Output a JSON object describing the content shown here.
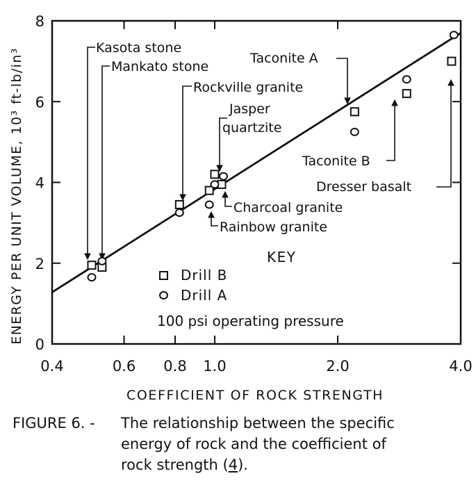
{
  "chart_data": {
    "type": "scatter",
    "x_scale": "log",
    "xlabel": "COEFFICIENT OF ROCK STRENGTH",
    "ylabel": "ENERGY PER UNIT VOLUME, 10³ ft-lb/in³",
    "xlim": [
      0.4,
      4.0
    ],
    "ylim": [
      0,
      8
    ],
    "x_ticks": [
      0.4,
      0.6,
      0.8,
      1.0,
      2.0,
      4.0
    ],
    "x_tick_labels": [
      "0.4",
      "0.6",
      "0.8",
      "1.0",
      "2.0",
      "4.0"
    ],
    "y_ticks": [
      0,
      2,
      4,
      6,
      8
    ],
    "y_tick_labels": [
      "0",
      "2",
      "4",
      "6",
      "8"
    ],
    "grid": false,
    "series": [
      {
        "name": "Drill B",
        "marker": "square",
        "points": [
          {
            "x": 0.5,
            "y": 1.95
          },
          {
            "x": 0.53,
            "y": 1.9
          },
          {
            "x": 0.82,
            "y": 3.45
          },
          {
            "x": 0.97,
            "y": 3.8
          },
          {
            "x": 1.0,
            "y": 4.2
          },
          {
            "x": 1.04,
            "y": 3.95
          },
          {
            "x": 2.2,
            "y": 5.75
          },
          {
            "x": 2.95,
            "y": 6.2
          },
          {
            "x": 3.8,
            "y": 7.0
          }
        ]
      },
      {
        "name": "Drill A",
        "marker": "circle",
        "points": [
          {
            "x": 0.5,
            "y": 1.65
          },
          {
            "x": 0.53,
            "y": 2.05
          },
          {
            "x": 0.82,
            "y": 3.25
          },
          {
            "x": 0.97,
            "y": 3.45
          },
          {
            "x": 1.0,
            "y": 3.95
          },
          {
            "x": 1.05,
            "y": 4.15
          },
          {
            "x": 2.2,
            "y": 5.25
          },
          {
            "x": 2.95,
            "y": 6.55
          },
          {
            "x": 3.85,
            "y": 7.65
          }
        ]
      }
    ],
    "fit_line": {
      "x1": 0.4,
      "y1": 1.28,
      "x2": 4.0,
      "y2": 7.7
    },
    "key": {
      "title": "KEY",
      "items": [
        "Drill B",
        "Drill A"
      ],
      "note": "100 psi operating pressure"
    },
    "annotations": [
      {
        "text": "Kasota stone",
        "target_x": 0.5,
        "target_y": 1.95
      },
      {
        "text": "Mankato stone",
        "target_x": 0.53,
        "target_y": 2.05
      },
      {
        "text": "Rockville granite",
        "target_x": 0.82,
        "target_y": 3.45
      },
      {
        "text": "Jasper",
        "target_x": 1.0,
        "target_y": 4.2
      },
      {
        "text": "quartzite",
        "target_x": 1.0,
        "target_y": 4.2
      },
      {
        "text": "Taconite A",
        "target_x": 2.2,
        "target_y": 5.75
      },
      {
        "text": "Taconite B",
        "target_x": 2.95,
        "target_y": 6.2
      },
      {
        "text": "Dresser basalt",
        "target_x": 3.8,
        "target_y": 7.0
      },
      {
        "text": "Charcoal granite",
        "target_x": 1.04,
        "target_y": 3.95
      },
      {
        "text": "Rainbow granite",
        "target_x": 0.97,
        "target_y": 3.45
      }
    ]
  },
  "caption": {
    "label": "FIGURE 6. -",
    "line1": "The relationship between the specific",
    "line2": "energy of rock and the coefficient of",
    "line3_prefix": "rock strength (",
    "line3_ref": "4",
    "line3_suffix": ")."
  }
}
